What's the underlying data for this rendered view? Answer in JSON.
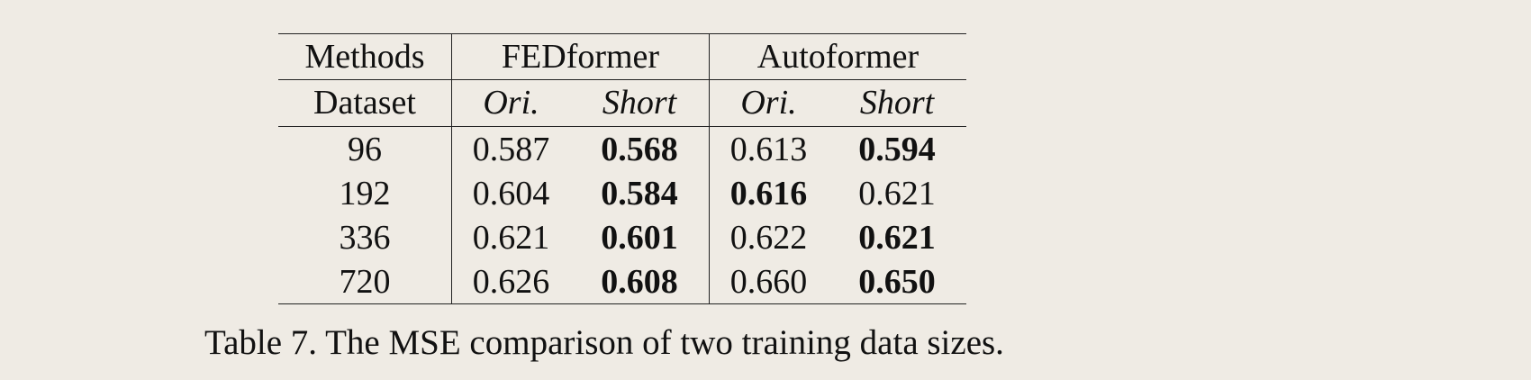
{
  "table": {
    "methods_label": "Methods",
    "dataset_label": "Dataset",
    "groups": [
      {
        "name": "FEDformer",
        "sub": [
          "Ori.",
          "Short"
        ]
      },
      {
        "name": "Autoformer",
        "sub": [
          "Ori.",
          "Short"
        ]
      }
    ],
    "rows": [
      {
        "dataset": "96",
        "fed_ori": "0.587",
        "fed_short": "0.568",
        "auto_ori": "0.613",
        "auto_short": "0.594"
      },
      {
        "dataset": "192",
        "fed_ori": "0.604",
        "fed_short": "0.584",
        "auto_ori": "0.616",
        "auto_short": "0.621"
      },
      {
        "dataset": "336",
        "fed_ori": "0.621",
        "fed_short": "0.601",
        "auto_ori": "0.622",
        "auto_short": "0.621"
      },
      {
        "dataset": "720",
        "fed_ori": "0.626",
        "fed_short": "0.608",
        "auto_ori": "0.660",
        "auto_short": "0.650"
      }
    ],
    "bold_cells": [
      [
        "fed_short",
        "auto_short"
      ],
      [
        "fed_short",
        "auto_ori"
      ],
      [
        "fed_short",
        "auto_short"
      ],
      [
        "fed_short",
        "auto_short"
      ]
    ]
  },
  "caption": "Table 7. The MSE comparison of two training data sizes."
}
